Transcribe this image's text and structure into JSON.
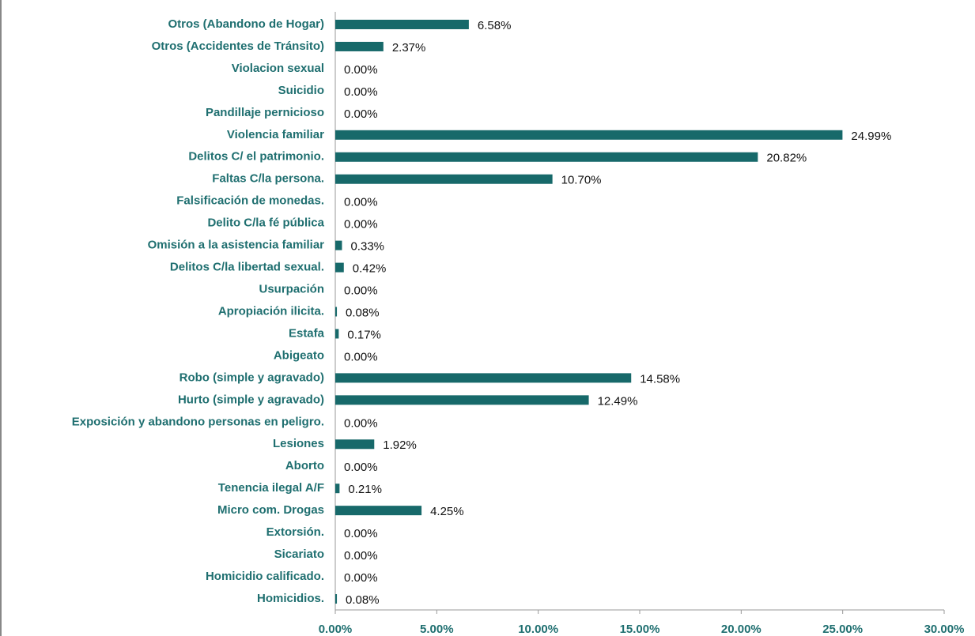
{
  "chart_data": {
    "type": "hbar",
    "categories": [
      "Otros (Abandono de Hogar)",
      "Otros (Accidentes de Tránsito)",
      "Violacion sexual",
      "Suicidio",
      "Pandillaje pernicioso",
      "Violencia familiar",
      "Delitos C/ el patrimonio.",
      "Faltas C/la persona.",
      "Falsificación de monedas.",
      "Delito C/la fé pública",
      "Omisión a la asistencia familiar",
      "Delitos C/la libertad sexual.",
      "Usurpación",
      "Apropiación ilicita.",
      "Estafa",
      "Abigeato",
      "Robo (simple y agravado)",
      "Hurto (simple y agravado)",
      "Exposición y abandono personas en peligro.",
      "Lesiones",
      "Aborto",
      "Tenencia ilegal A/F",
      "Micro com. Drogas",
      "Extorsión.",
      "Sicariato",
      "Homicidio calificado.",
      "Homicidios."
    ],
    "values": [
      6.58,
      2.37,
      0,
      0,
      0,
      24.99,
      20.82,
      10.7,
      0,
      0,
      0.33,
      0.42,
      0,
      0.08,
      0.17,
      0,
      14.58,
      12.49,
      0,
      1.92,
      0,
      0.21,
      4.25,
      0,
      0,
      0,
      0.08
    ],
    "value_labels": [
      "6.58%",
      "2.37%",
      "0.00%",
      "0.00%",
      "0.00%",
      "24.99%",
      "20.82%",
      "10.70%",
      "0.00%",
      "0.00%",
      "0.33%",
      "0.42%",
      "0.00%",
      "0.08%",
      "0.17%",
      "0.00%",
      "14.58%",
      "12.49%",
      "0.00%",
      "1.92%",
      "0.00%",
      "0.21%",
      "4.25%",
      "0.00%",
      "0.00%",
      "0.00%",
      "0.08%"
    ],
    "color": "#17696a",
    "xlim": [
      0,
      30
    ],
    "xticks": [
      {
        "value": 0,
        "label": "0.00%"
      },
      {
        "value": 5,
        "label": "5.00%"
      },
      {
        "value": 10,
        "label": "10.00%"
      },
      {
        "value": 15,
        "label": "15.00%"
      },
      {
        "value": 20,
        "label": "20.00%"
      },
      {
        "value": 25,
        "label": "25.00%"
      },
      {
        "value": 30,
        "label": "30.00%"
      }
    ],
    "grid": false
  }
}
